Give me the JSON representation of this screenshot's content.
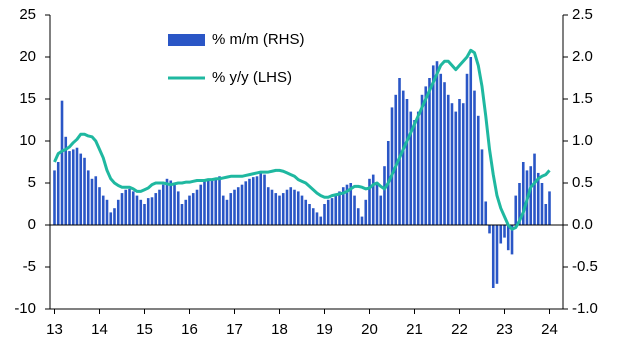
{
  "chart_data": {
    "type": "bar-line",
    "x": [
      13,
      13.083,
      13.167,
      13.25,
      13.333,
      13.417,
      13.5,
      13.583,
      13.667,
      13.75,
      13.833,
      13.917,
      14,
      14.083,
      14.167,
      14.25,
      14.333,
      14.417,
      14.5,
      14.583,
      14.667,
      14.75,
      14.833,
      14.917,
      15,
      15.083,
      15.167,
      15.25,
      15.333,
      15.417,
      15.5,
      15.583,
      15.667,
      15.75,
      15.833,
      15.917,
      16,
      16.083,
      16.167,
      16.25,
      16.333,
      16.417,
      16.5,
      16.583,
      16.667,
      16.75,
      16.833,
      16.917,
      17,
      17.083,
      17.167,
      17.25,
      17.333,
      17.417,
      17.5,
      17.583,
      17.667,
      17.75,
      17.833,
      17.917,
      18,
      18.083,
      18.167,
      18.25,
      18.333,
      18.417,
      18.5,
      18.583,
      18.667,
      18.75,
      18.833,
      18.917,
      19,
      19.083,
      19.167,
      19.25,
      19.333,
      19.417,
      19.5,
      19.583,
      19.667,
      19.75,
      19.833,
      19.917,
      20,
      20.083,
      20.167,
      20.25,
      20.333,
      20.417,
      20.5,
      20.583,
      20.667,
      20.75,
      20.833,
      20.917,
      21,
      21.083,
      21.167,
      21.25,
      21.333,
      21.417,
      21.5,
      21.583,
      21.667,
      21.75,
      21.833,
      21.917,
      22,
      22.083,
      22.167,
      22.25,
      22.333,
      22.417,
      22.5,
      22.583,
      22.667,
      22.75,
      22.833,
      22.917,
      23,
      23.083,
      23.167,
      23.25,
      23.333,
      23.417,
      23.5,
      23.583,
      23.667,
      23.75,
      23.833,
      23.917,
      24
    ],
    "series": [
      {
        "name": "% m/m (RHS)",
        "kind": "bar",
        "axis": "y2",
        "color": "#2a56c6",
        "values": [
          0.65,
          0.75,
          1.48,
          1.05,
          0.88,
          0.9,
          0.92,
          0.85,
          0.8,
          0.65,
          0.55,
          0.58,
          0.45,
          0.35,
          0.3,
          0.15,
          0.2,
          0.3,
          0.38,
          0.42,
          0.43,
          0.4,
          0.35,
          0.3,
          0.25,
          0.32,
          0.33,
          0.38,
          0.42,
          0.48,
          0.55,
          0.53,
          0.5,
          0.4,
          0.25,
          0.3,
          0.35,
          0.38,
          0.42,
          0.48,
          0.52,
          0.55,
          0.53,
          0.55,
          0.58,
          0.35,
          0.3,
          0.38,
          0.42,
          0.45,
          0.48,
          0.52,
          0.55,
          0.57,
          0.58,
          0.62,
          0.6,
          0.45,
          0.42,
          0.38,
          0.35,
          0.38,
          0.42,
          0.45,
          0.42,
          0.4,
          0.35,
          0.3,
          0.25,
          0.2,
          0.15,
          0.1,
          0.25,
          0.3,
          0.32,
          0.35,
          0.4,
          0.45,
          0.48,
          0.5,
          0.35,
          0.2,
          0.1,
          0.3,
          0.55,
          0.6,
          0.5,
          0.35,
          0.7,
          1.0,
          1.4,
          1.55,
          1.75,
          1.6,
          1.5,
          1.35,
          1.25,
          1.35,
          1.55,
          1.65,
          1.75,
          1.9,
          1.95,
          1.8,
          1.7,
          1.55,
          1.45,
          1.35,
          1.5,
          1.45,
          1.8,
          2.0,
          1.6,
          1.3,
          0.9,
          0.28,
          -0.1,
          -0.75,
          -0.7,
          -0.22,
          -0.15,
          -0.3,
          -0.35,
          0.35,
          0.5,
          0.75,
          0.65,
          0.7,
          0.85,
          0.62,
          0.5,
          0.25,
          0.4
        ]
      },
      {
        "name": "% y/y (LHS)",
        "kind": "line",
        "axis": "y",
        "color": "#1fb8a0",
        "values": [
          7.5,
          8.5,
          8.8,
          9,
          9.3,
          9.8,
          10.2,
          10.8,
          10.8,
          10.6,
          10.5,
          10,
          9,
          8,
          6.5,
          5.5,
          5,
          4.7,
          4.5,
          4.5,
          4.5,
          4.3,
          4,
          4,
          4.2,
          4.4,
          4.8,
          5,
          5,
          5,
          4.9,
          4.8,
          4.9,
          5,
          5,
          5.1,
          5.1,
          5.2,
          5.3,
          5.3,
          5.3,
          5.4,
          5.4,
          5.5,
          5.5,
          5.6,
          5.7,
          5.8,
          5.8,
          5.8,
          5.8,
          5.9,
          6,
          6.1,
          6.2,
          6.3,
          6.3,
          6.3,
          6.4,
          6.5,
          6.5,
          6.4,
          6.2,
          6,
          5.8,
          5.4,
          5.2,
          5,
          4.6,
          4.2,
          3.8,
          3.5,
          3.3,
          3.3,
          3.5,
          3.6,
          3.7,
          3.8,
          4,
          4.3,
          4.6,
          4.6,
          4.5,
          4.3,
          4.4,
          4.8,
          5,
          4.6,
          4.3,
          5,
          6,
          7,
          8,
          9,
          10,
          11,
          12,
          13,
          14,
          15,
          16,
          17,
          18,
          19,
          19.5,
          19.5,
          19,
          18.5,
          19,
          19.5,
          20,
          20.8,
          20.5,
          19,
          16.5,
          13,
          9,
          6,
          3.5,
          2,
          1,
          0,
          -0.5,
          -0.3,
          0.5,
          1.5,
          3,
          4.5,
          5,
          5.5,
          5.8,
          6,
          6.5
        ]
      }
    ],
    "xlim": [
      12.9,
      24.3
    ],
    "xticks": [
      13,
      14,
      15,
      16,
      17,
      18,
      19,
      20,
      21,
      22,
      23,
      24
    ],
    "ylim": [
      -10,
      25
    ],
    "yticks": [
      -10,
      -5,
      0,
      5,
      10,
      15,
      20,
      25
    ],
    "y2lim": [
      -1.0,
      2.5
    ],
    "y2ticks": [
      {
        "value": -1.0,
        "label": "-1.0"
      },
      -0.5,
      {
        "value": 0,
        "label": "0.0"
      },
      0.5,
      {
        "value": 1.0,
        "label": "1.0"
      },
      1.5,
      {
        "value": 2.0,
        "label": "2.0"
      },
      2.5
    ]
  }
}
